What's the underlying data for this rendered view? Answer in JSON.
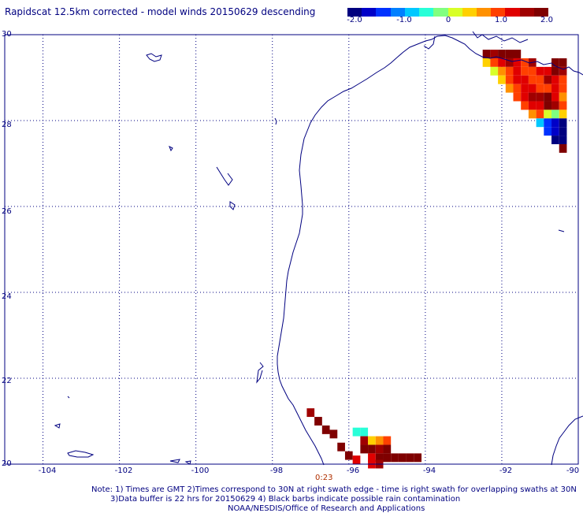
{
  "title": "Rapidscat 12.5km corrected - model winds 20150629 descending",
  "colorbar": {
    "labels": [
      "-2.0",
      "-1.0",
      "0",
      "1.0",
      "2.0"
    ],
    "colors": [
      "#00007f",
      "#0000c8",
      "#0032ff",
      "#0080ff",
      "#00c8ff",
      "#28ffd8",
      "#80ff80",
      "#d8ff28",
      "#ffd000",
      "#ff9000",
      "#ff4000",
      "#e00000",
      "#a00000",
      "#7f0000"
    ]
  },
  "map": {
    "lon_range": [
      -105,
      -90
    ],
    "lat_range": [
      20,
      30
    ],
    "x_ticks": [
      "-104",
      "-102",
      "-100",
      "-98",
      "-96",
      "-94",
      "-92",
      "-90"
    ],
    "y_ticks": [
      "30",
      "28",
      "26",
      "24",
      "22",
      "20"
    ],
    "coast_color": "#000080",
    "grid": "dotted"
  },
  "time_label": "0:23",
  "notes": [
    "Note: 1) Times are GMT 2)Times correspond to 30N at right swath edge - time is right swath for overlapping swaths at 30N",
    "3)Data buffer is 22 hrs for 20150629 4) Black barbs indicate possible rain contamination",
    "NOAA/NESDIS/Office of Research and Applications"
  ],
  "swath_cells": [
    {
      "lon": -92.4,
      "lat": 29.55,
      "v": 1.9
    },
    {
      "lon": -92.2,
      "lat": 29.55,
      "v": 1.6
    },
    {
      "lon": -92.0,
      "lat": 29.55,
      "v": 1.8
    },
    {
      "lon": -91.8,
      "lat": 29.55,
      "v": 2.0
    },
    {
      "lon": -91.6,
      "lat": 29.55,
      "v": 2.0
    },
    {
      "lon": -92.4,
      "lat": 29.35,
      "v": 0.3
    },
    {
      "lon": -92.2,
      "lat": 29.35,
      "v": 1.0
    },
    {
      "lon": -92.0,
      "lat": 29.35,
      "v": 1.2
    },
    {
      "lon": -91.8,
      "lat": 29.35,
      "v": 1.5
    },
    {
      "lon": -91.6,
      "lat": 29.35,
      "v": 1.3
    },
    {
      "lon": -91.4,
      "lat": 29.35,
      "v": 1.1
    },
    {
      "lon": -91.2,
      "lat": 29.35,
      "v": 1.6
    },
    {
      "lon": -90.6,
      "lat": 29.35,
      "v": 2.0
    },
    {
      "lon": -90.4,
      "lat": 29.35,
      "v": 2.0
    },
    {
      "lon": -92.2,
      "lat": 29.15,
      "v": 0.1
    },
    {
      "lon": -92.0,
      "lat": 29.15,
      "v": 0.8
    },
    {
      "lon": -91.8,
      "lat": 29.15,
      "v": 1.1
    },
    {
      "lon": -91.6,
      "lat": 29.15,
      "v": 1.3
    },
    {
      "lon": -91.4,
      "lat": 29.15,
      "v": 1.0
    },
    {
      "lon": -91.2,
      "lat": 29.15,
      "v": 0.9
    },
    {
      "lon": -91.0,
      "lat": 29.15,
      "v": 1.2
    },
    {
      "lon": -90.8,
      "lat": 29.15,
      "v": 1.4
    },
    {
      "lon": -90.6,
      "lat": 29.15,
      "v": 1.9
    },
    {
      "lon": -90.4,
      "lat": 29.15,
      "v": 1.7
    },
    {
      "lon": -92.0,
      "lat": 28.95,
      "v": 0.4
    },
    {
      "lon": -91.8,
      "lat": 28.95,
      "v": 0.9
    },
    {
      "lon": -91.6,
      "lat": 28.95,
      "v": 1.2
    },
    {
      "lon": -91.4,
      "lat": 28.95,
      "v": 1.4
    },
    {
      "lon": -91.2,
      "lat": 28.95,
      "v": 1.1
    },
    {
      "lon": -91.0,
      "lat": 28.95,
      "v": 1.0
    },
    {
      "lon": -90.8,
      "lat": 28.95,
      "v": 1.6
    },
    {
      "lon": -90.6,
      "lat": 28.95,
      "v": 1.2
    },
    {
      "lon": -90.4,
      "lat": 28.95,
      "v": 0.9
    },
    {
      "lon": -91.8,
      "lat": 28.75,
      "v": 0.7
    },
    {
      "lon": -91.6,
      "lat": 28.75,
      "v": 1.1
    },
    {
      "lon": -91.4,
      "lat": 28.75,
      "v": 1.2
    },
    {
      "lon": -91.2,
      "lat": 28.75,
      "v": 1.3
    },
    {
      "lon": -91.0,
      "lat": 28.75,
      "v": 0.9
    },
    {
      "lon": -90.8,
      "lat": 28.75,
      "v": 1.0
    },
    {
      "lon": -90.6,
      "lat": 28.75,
      "v": 1.4
    },
    {
      "lon": -90.4,
      "lat": 28.75,
      "v": 1.1
    },
    {
      "lon": -91.6,
      "lat": 28.55,
      "v": 0.9
    },
    {
      "lon": -91.4,
      "lat": 28.55,
      "v": 1.3
    },
    {
      "lon": -91.2,
      "lat": 28.55,
      "v": 1.5
    },
    {
      "lon": -91.0,
      "lat": 28.55,
      "v": 1.7
    },
    {
      "lon": -90.8,
      "lat": 28.55,
      "v": 1.8
    },
    {
      "lon": -90.6,
      "lat": 28.55,
      "v": 1.3
    },
    {
      "lon": -90.4,
      "lat": 28.55,
      "v": 0.8
    },
    {
      "lon": -91.4,
      "lat": 28.35,
      "v": 1.0
    },
    {
      "lon": -91.2,
      "lat": 28.35,
      "v": 1.2
    },
    {
      "lon": -91.0,
      "lat": 28.35,
      "v": 1.4
    },
    {
      "lon": -90.8,
      "lat": 28.35,
      "v": 2.0
    },
    {
      "lon": -90.6,
      "lat": 28.35,
      "v": 1.5
    },
    {
      "lon": -90.4,
      "lat": 28.35,
      "v": 0.9
    },
    {
      "lon": -91.2,
      "lat": 28.15,
      "v": 0.6
    },
    {
      "lon": -91.0,
      "lat": 28.15,
      "v": 0.9
    },
    {
      "lon": -90.8,
      "lat": 28.15,
      "v": 0.2
    },
    {
      "lon": -90.6,
      "lat": 28.15,
      "v": -0.2
    },
    {
      "lon": -90.4,
      "lat": 28.15,
      "v": 0.3
    },
    {
      "lon": -91.0,
      "lat": 27.95,
      "v": -0.8
    },
    {
      "lon": -90.8,
      "lat": 27.95,
      "v": -1.2
    },
    {
      "lon": -90.6,
      "lat": 27.95,
      "v": -1.6
    },
    {
      "lon": -90.4,
      "lat": 27.95,
      "v": -1.9
    },
    {
      "lon": -90.8,
      "lat": 27.75,
      "v": -1.4
    },
    {
      "lon": -90.6,
      "lat": 27.75,
      "v": -1.7
    },
    {
      "lon": -90.4,
      "lat": 27.75,
      "v": -2.0
    },
    {
      "lon": -90.6,
      "lat": 27.55,
      "v": -2.0
    },
    {
      "lon": -90.4,
      "lat": 27.55,
      "v": -1.8
    },
    {
      "lon": -90.4,
      "lat": 27.35,
      "v": 2.0
    },
    {
      "lon": -97.0,
      "lat": 21.2,
      "v": 1.6
    },
    {
      "lon": -96.8,
      "lat": 21.0,
      "v": 1.8
    },
    {
      "lon": -96.6,
      "lat": 20.8,
      "v": 2.0
    },
    {
      "lon": -96.4,
      "lat": 20.7,
      "v": 2.0
    },
    {
      "lon": -96.2,
      "lat": 20.4,
      "v": 1.9
    },
    {
      "lon": -96.0,
      "lat": 20.2,
      "v": 2.0
    },
    {
      "lon": -95.8,
      "lat": 20.1,
      "v": 1.4
    },
    {
      "lon": -95.8,
      "lat": 20.75,
      "v": -0.4
    },
    {
      "lon": -95.6,
      "lat": 20.75,
      "v": -0.4
    },
    {
      "lon": -95.6,
      "lat": 20.55,
      "v": 1.6
    },
    {
      "lon": -95.4,
      "lat": 20.55,
      "v": 0.4
    },
    {
      "lon": -95.2,
      "lat": 20.55,
      "v": 0.6
    },
    {
      "lon": -95.0,
      "lat": 20.55,
      "v": 1.0
    },
    {
      "lon": -95.6,
      "lat": 20.35,
      "v": 1.9
    },
    {
      "lon": -95.4,
      "lat": 20.35,
      "v": 1.9
    },
    {
      "lon": -95.2,
      "lat": 20.35,
      "v": 1.7
    },
    {
      "lon": -95.0,
      "lat": 20.35,
      "v": 1.8
    },
    {
      "lon": -95.4,
      "lat": 20.15,
      "v": 1.2
    },
    {
      "lon": -95.2,
      "lat": 20.15,
      "v": 1.9
    },
    {
      "lon": -95.0,
      "lat": 20.15,
      "v": 1.9
    },
    {
      "lon": -94.8,
      "lat": 20.15,
      "v": 2.0
    },
    {
      "lon": -94.6,
      "lat": 20.15,
      "v": 2.0
    },
    {
      "lon": -94.4,
      "lat": 20.15,
      "v": 2.0
    },
    {
      "lon": -94.2,
      "lat": 20.15,
      "v": 2.0
    },
    {
      "lon": -95.4,
      "lat": 20.0,
      "v": 1.2
    },
    {
      "lon": -95.2,
      "lat": 20.0,
      "v": 1.5
    }
  ]
}
